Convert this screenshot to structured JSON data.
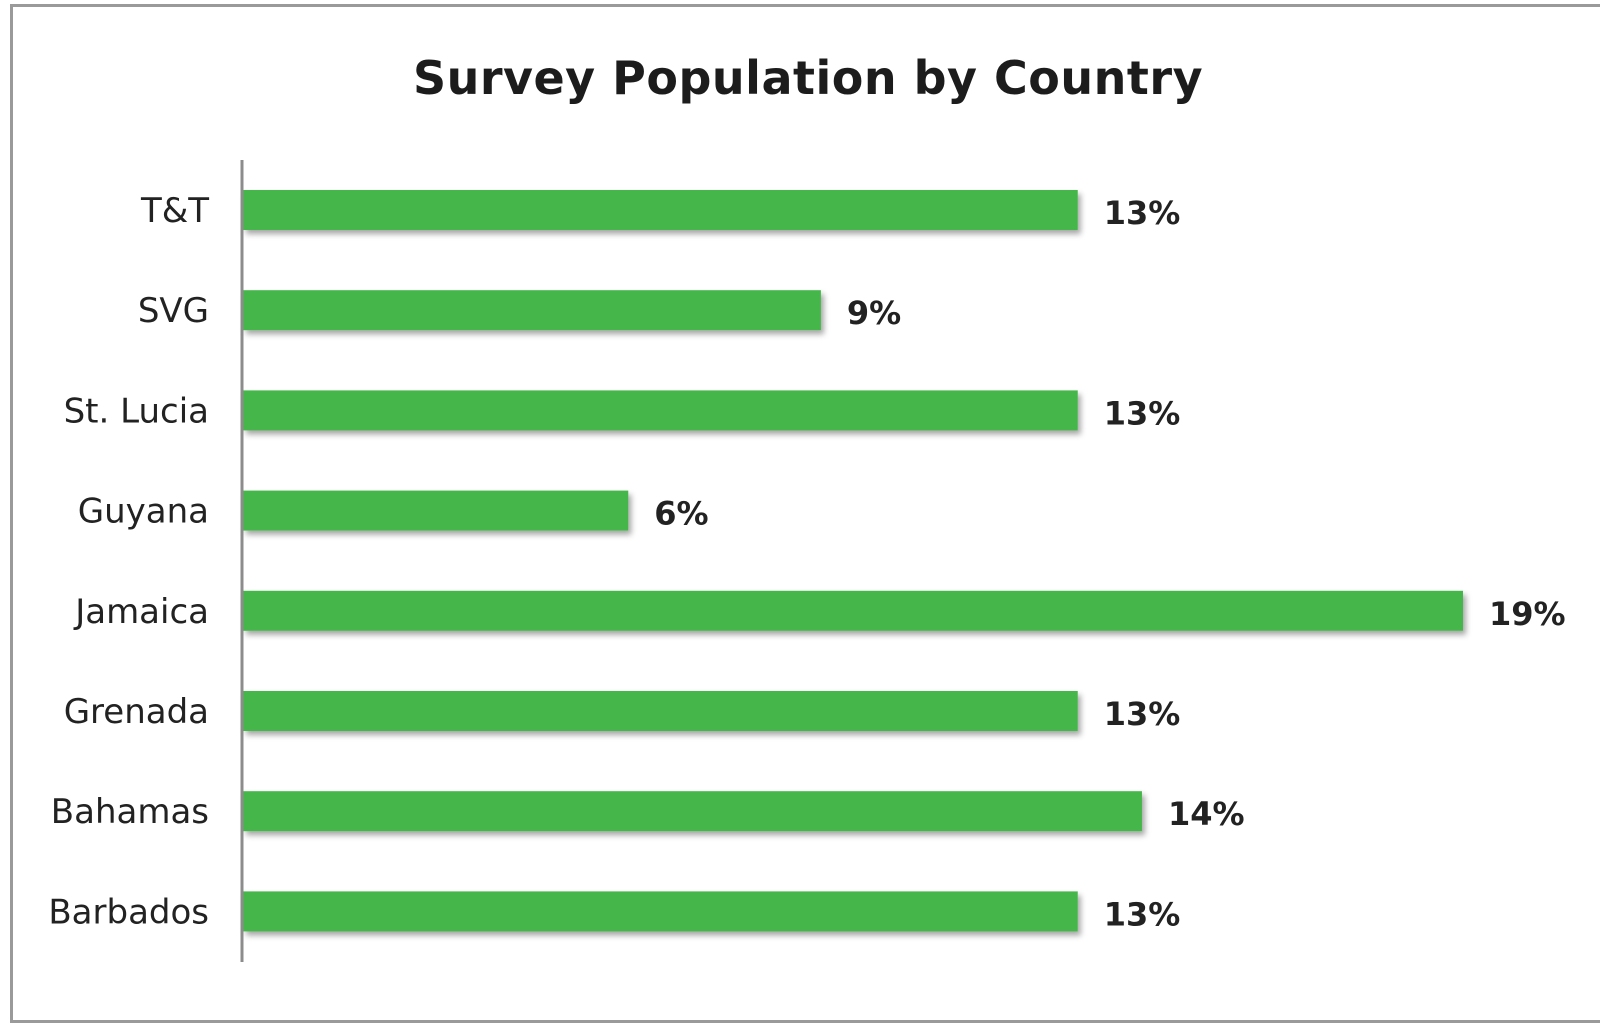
{
  "chart_data": {
    "type": "bar",
    "orientation": "horizontal",
    "title": "Survey Population by Country",
    "categories": [
      "T&T",
      "SVG",
      "St. Lucia",
      "Guyana",
      "Jamaica",
      "Grenada",
      "Bahamas",
      "Barbados"
    ],
    "values": [
      13,
      9,
      13,
      6,
      19,
      13,
      14,
      13
    ],
    "value_labels": [
      "13%",
      "9%",
      "13%",
      "6%",
      "19%",
      "13%",
      "14%",
      "13%"
    ],
    "xlim": [
      0,
      19
    ],
    "grid": false,
    "legend": "none",
    "bar_color": "#44b649",
    "axis_color": "#8c8c8c"
  }
}
